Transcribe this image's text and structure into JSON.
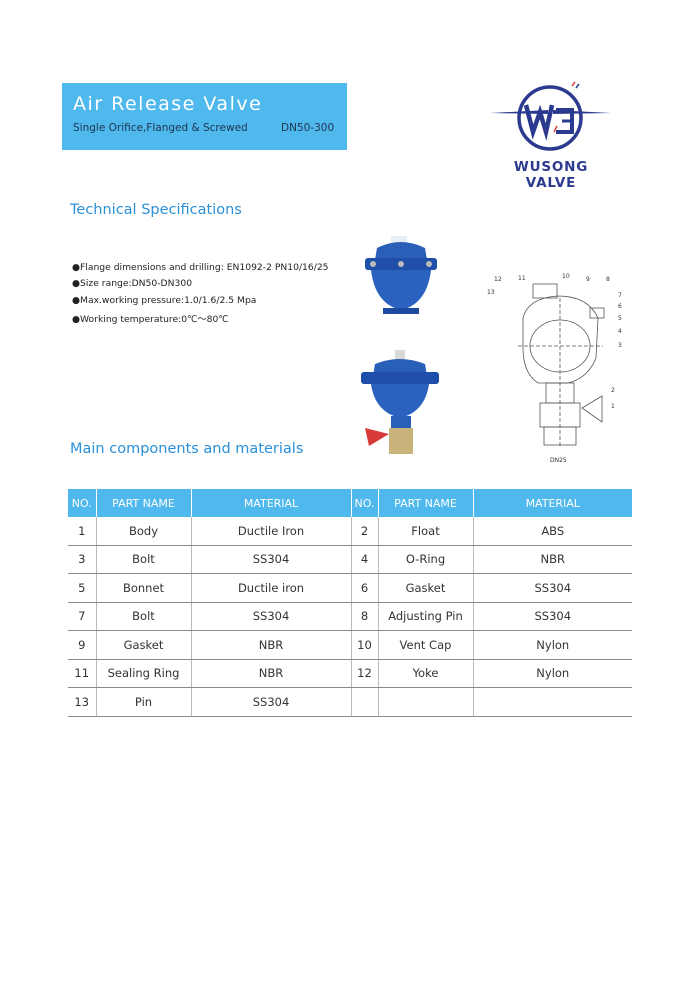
{
  "header": {
    "title": "Air Release Valve",
    "subtitle": "Single Orifice,Flanged & Screwed",
    "size": "DN50-300"
  },
  "brand": {
    "name": "WUSONG VALVE",
    "logo_letters": "WS",
    "color": "#2b3a8e",
    "accent": "#e03a3a"
  },
  "accent_color": "#4fb8ec",
  "tech": {
    "heading": "Technical Specifications",
    "bullets": [
      "●Flange dimensions and drilling: EN1092-2 PN10/16/25",
      "●Size range:DN50-DN300",
      "●Max.working pressure:1.0/1.6/2.5 Mpa",
      "●Working temperature:0℃～80℃"
    ]
  },
  "diagram": {
    "caption": "DN25",
    "labels": [
      "1",
      "2",
      "3",
      "4",
      "5",
      "6",
      "7",
      "8",
      "9",
      "10",
      "11",
      "12",
      "13"
    ]
  },
  "components": {
    "heading": "Main components and materials",
    "columns": [
      "NO.",
      "PART NAME",
      "MATERIAL",
      "NO.",
      "PART NAME",
      "MATERIAL"
    ],
    "rows": [
      [
        "1",
        "Body",
        "Ductile Iron",
        "2",
        "Float",
        "ABS"
      ],
      [
        "3",
        "Bolt",
        "SS304",
        "4",
        "O-Ring",
        "NBR"
      ],
      [
        "5",
        "Bonnet",
        "Ductile iron",
        "6",
        "Gasket",
        "SS304"
      ],
      [
        "7",
        "Bolt",
        "SS304",
        "8",
        "Adjusting Pin",
        "SS304"
      ],
      [
        "9",
        "Gasket",
        "NBR",
        "10",
        "Vent Cap",
        "Nylon"
      ],
      [
        "11",
        "Sealing Ring",
        "NBR",
        "12",
        "Yoke",
        "Nylon"
      ],
      [
        "13",
        "Pin",
        "SS304",
        "",
        "",
        ""
      ]
    ]
  }
}
